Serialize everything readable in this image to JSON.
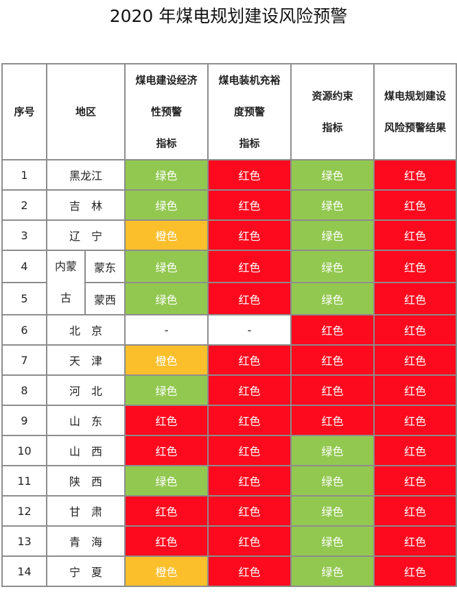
{
  "title": "2020 年煤电规划建设风险预警",
  "colors": {
    "绿色": "#92c850",
    "橙色": "#fbbf2b",
    "红色": "#fe0a1e"
  },
  "headers": [
    "序号",
    "地区",
    "煤电建设经济性预警指标",
    "煤电装机充裕度预警指标",
    "资源约束指标",
    "煤电规划建设风险预警结果"
  ],
  "header_lines": [
    [
      "序号"
    ],
    [
      "地区"
    ],
    [
      "煤电建设经济",
      "性预警",
      "指标"
    ],
    [
      "煤电装机充裕",
      "度预警",
      "指标"
    ],
    [
      "资源约束",
      "指标"
    ],
    [
      "煤电规划建设",
      "风险预警结果"
    ]
  ],
  "merged_region": {
    "label_lines": [
      "内蒙",
      "古"
    ],
    "rows": [
      "蒙东",
      "蒙西"
    ]
  },
  "rows": [
    {
      "no": "1",
      "region": "黑龙江",
      "values": [
        "绿色",
        "红色",
        "绿色",
        "红色"
      ]
    },
    {
      "no": "2",
      "region": "吉　林",
      "values": [
        "绿色",
        "红色",
        "绿色",
        "红色"
      ]
    },
    {
      "no": "3",
      "region": "辽　宁",
      "values": [
        "橙色",
        "红色",
        "绿色",
        "红色"
      ]
    },
    {
      "no": "4",
      "region": "蒙东",
      "values": [
        "绿色",
        "红色",
        "绿色",
        "红色"
      ]
    },
    {
      "no": "5",
      "region": "蒙西",
      "values": [
        "绿色",
        "红色",
        "绿色",
        "红色"
      ]
    },
    {
      "no": "6",
      "region": "北　京",
      "values": [
        "-",
        "-",
        "红色",
        "红色"
      ]
    },
    {
      "no": "7",
      "region": "天　津",
      "values": [
        "橙色",
        "红色",
        "红色",
        "红色"
      ]
    },
    {
      "no": "8",
      "region": "河　北",
      "values": [
        "绿色",
        "红色",
        "红色",
        "红色"
      ]
    },
    {
      "no": "9",
      "region": "山　东",
      "values": [
        "红色",
        "红色",
        "红色",
        "红色"
      ]
    },
    {
      "no": "10",
      "region": "山　西",
      "values": [
        "红色",
        "红色",
        "绿色",
        "红色"
      ]
    },
    {
      "no": "11",
      "region": "陕　西",
      "values": [
        "绿色",
        "红色",
        "绿色",
        "红色"
      ]
    },
    {
      "no": "12",
      "region": "甘　肃",
      "values": [
        "红色",
        "红色",
        "绿色",
        "红色"
      ]
    },
    {
      "no": "13",
      "region": "青　海",
      "values": [
        "红色",
        "红色",
        "绿色",
        "红色"
      ]
    },
    {
      "no": "14",
      "region": "宁　夏",
      "values": [
        "橙色",
        "红色",
        "绿色",
        "红色"
      ]
    }
  ]
}
